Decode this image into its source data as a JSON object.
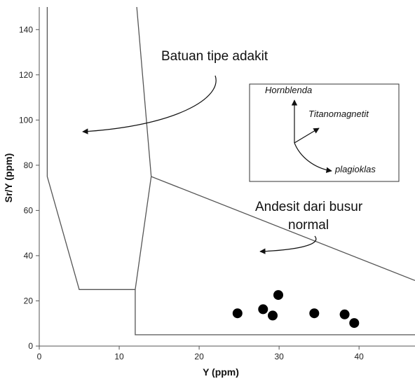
{
  "chart_data": {
    "type": "scatter",
    "title": "",
    "xlabel": "Y (ppm)",
    "ylabel": "Sr/Y (ppm)",
    "xlim": [
      0,
      47
    ],
    "ylim": [
      0,
      150
    ],
    "xticks": [
      0,
      10,
      20,
      30,
      40
    ],
    "yticks": [
      0,
      20,
      40,
      60,
      80,
      100,
      120,
      140
    ],
    "grid": false,
    "series": [
      {
        "x": [
          24.8,
          28.0,
          29.2,
          29.9,
          34.4,
          38.2,
          39.4
        ],
        "y": [
          14.5,
          16.3,
          13.5,
          22.6,
          14.5,
          14.0,
          10.2
        ],
        "color": "#000000"
      }
    ],
    "field_boundaries": [
      {
        "x": [
          1,
          1,
          5,
          12,
          12,
          47
        ],
        "y": [
          150,
          75,
          25,
          25,
          5,
          5
        ]
      },
      {
        "x": [
          12,
          14,
          14,
          12.2
        ],
        "y": [
          25,
          75,
          75,
          150
        ]
      },
      {
        "x": [
          14,
          47
        ],
        "y": [
          75,
          29
        ]
      }
    ],
    "annotations": [
      {
        "text": "Batuan tipe adakit",
        "lines": [
          "Batuan tipe adakit"
        ]
      },
      {
        "text": "Andesit dari busur normal",
        "lines": [
          "Andesit dari busur",
          "normal"
        ]
      }
    ],
    "inset": {
      "vectors": [
        {
          "label": "Hornblenda"
        },
        {
          "label": "Titanomagnetit"
        },
        {
          "label": "plagioklas"
        }
      ]
    }
  }
}
